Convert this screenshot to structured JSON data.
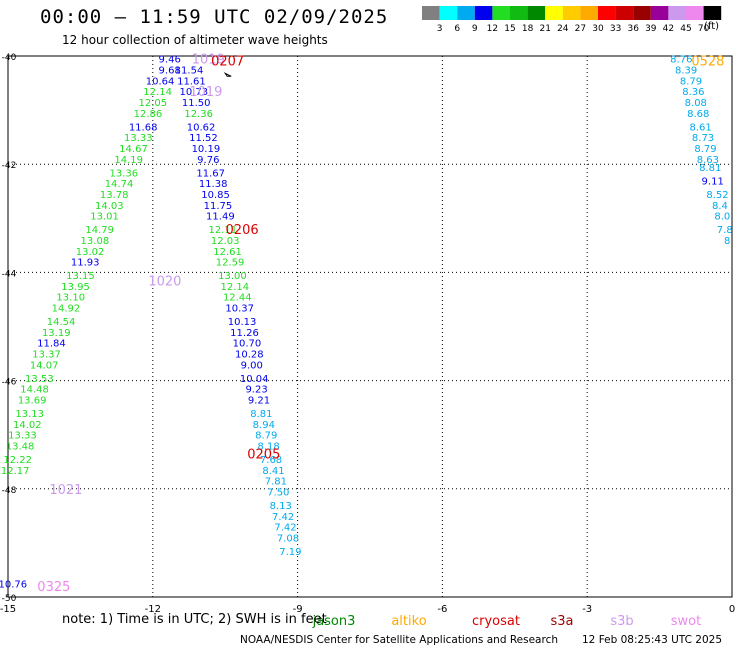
{
  "header": {
    "title": "00:00 – 11:59 UTC 02/09/2025",
    "subtitle": "12 hour collection of altimeter wave heights"
  },
  "color_scale": {
    "thresholds": [
      "3",
      "6",
      "9",
      "12",
      "15",
      "18",
      "21",
      "24",
      "27",
      "30",
      "33",
      "36",
      "39",
      "42",
      "45",
      "70"
    ],
    "colors": [
      "#808080",
      "#00ffff",
      "#00aaee",
      "#0000ee",
      "#22dd22",
      "#11bb11",
      "#008800",
      "#ffff00",
      "#ffcc00",
      "#ffaa00",
      "#ff0000",
      "#cc0000",
      "#990000",
      "#990099",
      "#cc99ee",
      "#ee88ee",
      "#000000"
    ],
    "unit_label": "(ft)"
  },
  "legend": {
    "note": "note:  1) Time is in UTC; 2) SWH is in feet",
    "satellites": [
      {
        "name": "jason3",
        "color": "#008800"
      },
      {
        "name": "altiko",
        "color": "#ffaa00"
      },
      {
        "name": "cryosat",
        "color": "#dd0000"
      },
      {
        "name": "s3a",
        "color": "#990000"
      },
      {
        "name": "s3b",
        "color": "#cc99ee"
      },
      {
        "name": "swot",
        "color": "#ee88ee"
      }
    ]
  },
  "footer": {
    "credit": "NOAA/NESDIS Center for Satellite Applications and Research",
    "timestamp": "12 Feb 08:25:43 UTC 2025"
  },
  "chart_data": {
    "type": "scatter",
    "xlim": [
      -15,
      0
    ],
    "ylim": [
      -50,
      -40
    ],
    "x_ticks": [
      "-15",
      "-12",
      "-9",
      "-6",
      "-3",
      "0"
    ],
    "y_ticks": [
      "-40",
      "-42",
      "-44",
      "-46",
      "-48",
      "-50"
    ],
    "grid": true,
    "tracks": [
      {
        "satellite": "s3b",
        "time": "1020",
        "x": -11.75,
        "y": -44.15,
        "color": "#cc99ee"
      },
      {
        "satellite": "s3b",
        "time": "1021",
        "x": -13.8,
        "y": -48.0,
        "color": "#cc99ee"
      },
      {
        "satellite": "s3b",
        "time": "1019",
        "x": -10.9,
        "y": -40.65,
        "color": "#cc99ee"
      },
      {
        "satellite": "s3b",
        "time": "1019",
        "x": -10.85,
        "y": -40.05,
        "color": "#cc99ee"
      },
      {
        "satellite": "swot",
        "time": "0325",
        "x": -14.05,
        "y": -49.8,
        "color": "#ee88ee"
      },
      {
        "satellite": "cryosat",
        "time": "0207",
        "x": -10.45,
        "y": -40.08,
        "color": "#dd0000"
      },
      {
        "satellite": "cryosat",
        "time": "0206",
        "x": -10.15,
        "y": -43.2,
        "color": "#dd0000"
      },
      {
        "satellite": "cryosat",
        "time": "0205",
        "x": -9.7,
        "y": -47.35,
        "color": "#dd0000"
      },
      {
        "satellite": "altiko",
        "time": "0528",
        "x": -0.5,
        "y": -40.08,
        "color": "#ffaa00"
      }
    ],
    "points": [
      {
        "x": -11.65,
        "y": -40.05,
        "v": "9.46"
      },
      {
        "x": -11.65,
        "y": -40.25,
        "v": "9.68"
      },
      {
        "x": -11.85,
        "y": -40.45,
        "v": "10.64"
      },
      {
        "x": -11.9,
        "y": -40.65,
        "v": "12.14"
      },
      {
        "x": -12.0,
        "y": -40.85,
        "v": "12.05"
      },
      {
        "x": -12.1,
        "y": -41.05,
        "v": "12.86"
      },
      {
        "x": -12.2,
        "y": -41.3,
        "v": "11.68"
      },
      {
        "x": -12.3,
        "y": -41.5,
        "v": "13.33"
      },
      {
        "x": -12.4,
        "y": -41.7,
        "v": "14.67"
      },
      {
        "x": -12.5,
        "y": -41.9,
        "v": "14.19"
      },
      {
        "x": -12.6,
        "y": -42.15,
        "v": "13.36"
      },
      {
        "x": -12.7,
        "y": -42.35,
        "v": "14.74"
      },
      {
        "x": -12.8,
        "y": -42.55,
        "v": "13.78"
      },
      {
        "x": -12.9,
        "y": -42.75,
        "v": "14.03"
      },
      {
        "x": -13.0,
        "y": -42.95,
        "v": "13.01"
      },
      {
        "x": -13.1,
        "y": -43.2,
        "v": "14.79"
      },
      {
        "x": -13.2,
        "y": -43.4,
        "v": "13.08"
      },
      {
        "x": -13.3,
        "y": -43.6,
        "v": "13.02"
      },
      {
        "x": -13.4,
        "y": -43.8,
        "v": "11.93"
      },
      {
        "x": -13.5,
        "y": -44.05,
        "v": "13.15"
      },
      {
        "x": -13.6,
        "y": -44.25,
        "v": "13.95"
      },
      {
        "x": -13.7,
        "y": -44.45,
        "v": "13.10"
      },
      {
        "x": -13.8,
        "y": -44.65,
        "v": "14.92"
      },
      {
        "x": -13.9,
        "y": -44.9,
        "v": "14.54"
      },
      {
        "x": -14.0,
        "y": -45.1,
        "v": "13.19"
      },
      {
        "x": -14.1,
        "y": -45.3,
        "v": "11.84"
      },
      {
        "x": -14.2,
        "y": -45.5,
        "v": "13.37"
      },
      {
        "x": -14.25,
        "y": -45.7,
        "v": "14.07"
      },
      {
        "x": -14.35,
        "y": -45.95,
        "v": "13.53"
      },
      {
        "x": -14.45,
        "y": -46.15,
        "v": "14.48"
      },
      {
        "x": -14.5,
        "y": -46.35,
        "v": "13.69"
      },
      {
        "x": -14.55,
        "y": -46.6,
        "v": "13.13"
      },
      {
        "x": -14.6,
        "y": -46.8,
        "v": "14.02"
      },
      {
        "x": -14.7,
        "y": -47.0,
        "v": "13.33"
      },
      {
        "x": -14.75,
        "y": -47.2,
        "v": "13.48"
      },
      {
        "x": -14.8,
        "y": -47.45,
        "v": "12.22"
      },
      {
        "x": -14.85,
        "y": -47.65,
        "v": "12.17"
      },
      {
        "x": -14.9,
        "y": -49.75,
        "v": "10.76"
      },
      {
        "x": -11.25,
        "y": -40.25,
        "v": "11.54"
      },
      {
        "x": -11.2,
        "y": -40.45,
        "v": "11.61"
      },
      {
        "x": -11.15,
        "y": -40.65,
        "v": "10.73"
      },
      {
        "x": -11.1,
        "y": -40.85,
        "v": "11.50"
      },
      {
        "x": -11.05,
        "y": -41.05,
        "v": "12.36"
      },
      {
        "x": -11.0,
        "y": -41.3,
        "v": "10.62"
      },
      {
        "x": -10.95,
        "y": -41.5,
        "v": "11.52"
      },
      {
        "x": -10.9,
        "y": -41.7,
        "v": "10.19"
      },
      {
        "x": -10.85,
        "y": -41.9,
        "v": "9.76"
      },
      {
        "x": -10.8,
        "y": -42.15,
        "v": "11.67"
      },
      {
        "x": -10.75,
        "y": -42.35,
        "v": "11.38"
      },
      {
        "x": -10.7,
        "y": -42.55,
        "v": "10.85"
      },
      {
        "x": -10.65,
        "y": -42.75,
        "v": "11.75"
      },
      {
        "x": -10.6,
        "y": -42.95,
        "v": "11.49"
      },
      {
        "x": -10.55,
        "y": -43.2,
        "v": "12.11"
      },
      {
        "x": -10.5,
        "y": -43.4,
        "v": "12.03"
      },
      {
        "x": -10.45,
        "y": -43.6,
        "v": "12.61"
      },
      {
        "x": -10.4,
        "y": -43.8,
        "v": "12.59"
      },
      {
        "x": -10.35,
        "y": -44.05,
        "v": "13.00"
      },
      {
        "x": -10.3,
        "y": -44.25,
        "v": "12.14"
      },
      {
        "x": -10.25,
        "y": -44.45,
        "v": "12.44"
      },
      {
        "x": -10.2,
        "y": -44.65,
        "v": "10.37"
      },
      {
        "x": -10.15,
        "y": -44.9,
        "v": "10.13"
      },
      {
        "x": -10.1,
        "y": -45.1,
        "v": "11.26"
      },
      {
        "x": -10.05,
        "y": -45.3,
        "v": "10.70"
      },
      {
        "x": -10.0,
        "y": -45.5,
        "v": "10.28"
      },
      {
        "x": -9.95,
        "y": -45.7,
        "v": "9.00"
      },
      {
        "x": -9.9,
        "y": -45.95,
        "v": "10.04"
      },
      {
        "x": -9.85,
        "y": -46.15,
        "v": "9.23"
      },
      {
        "x": -9.8,
        "y": -46.35,
        "v": "9.21"
      },
      {
        "x": -9.75,
        "y": -46.6,
        "v": "8.81"
      },
      {
        "x": -9.7,
        "y": -46.8,
        "v": "8.94"
      },
      {
        "x": -9.65,
        "y": -47.0,
        "v": "8.79"
      },
      {
        "x": -9.6,
        "y": -47.2,
        "v": "8.18"
      },
      {
        "x": -9.55,
        "y": -47.45,
        "v": "7.68"
      },
      {
        "x": -9.5,
        "y": -47.65,
        "v": "8.41"
      },
      {
        "x": -9.45,
        "y": -47.85,
        "v": "7.81"
      },
      {
        "x": -9.4,
        "y": -48.05,
        "v": "7.50"
      },
      {
        "x": -9.35,
        "y": -48.3,
        "v": "8.13"
      },
      {
        "x": -9.3,
        "y": -48.5,
        "v": "7.42"
      },
      {
        "x": -9.25,
        "y": -48.7,
        "v": "7.42"
      },
      {
        "x": -9.2,
        "y": -48.9,
        "v": "7.08"
      },
      {
        "x": -9.15,
        "y": -49.15,
        "v": "7.19"
      },
      {
        "x": -1.05,
        "y": -40.05,
        "v": "8.76"
      },
      {
        "x": -0.95,
        "y": -40.25,
        "v": "8.39"
      },
      {
        "x": -0.85,
        "y": -40.45,
        "v": "8.79"
      },
      {
        "x": -0.8,
        "y": -40.65,
        "v": "8.36"
      },
      {
        "x": -0.75,
        "y": -40.85,
        "v": "8.08"
      },
      {
        "x": -0.7,
        "y": -41.05,
        "v": "8.68"
      },
      {
        "x": -0.65,
        "y": -41.3,
        "v": "8.61"
      },
      {
        "x": -0.6,
        "y": -41.5,
        "v": "8.73"
      },
      {
        "x": -0.55,
        "y": -41.7,
        "v": "8.79"
      },
      {
        "x": -0.5,
        "y": -41.9,
        "v": "8.63"
      },
      {
        "x": -0.45,
        "y": -42.05,
        "v": "8.81"
      },
      {
        "x": -0.4,
        "y": -42.3,
        "v": "9.11"
      },
      {
        "x": -0.3,
        "y": -42.55,
        "v": "8.52"
      },
      {
        "x": -0.25,
        "y": -42.75,
        "v": "8.4"
      },
      {
        "x": -0.2,
        "y": -42.95,
        "v": "8.0"
      },
      {
        "x": -0.15,
        "y": -43.2,
        "v": "7.8"
      },
      {
        "x": -0.1,
        "y": -43.4,
        "v": "8"
      }
    ]
  }
}
